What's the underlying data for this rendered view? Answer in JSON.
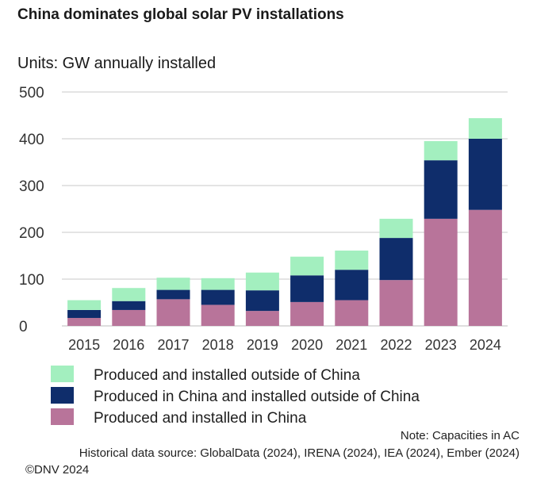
{
  "chart_data": {
    "type": "bar",
    "stacked": true,
    "title": "China dominates global solar PV installations",
    "ylabel": "Units: GW annually installed",
    "ylim": [
      0,
      500
    ],
    "yticks": [
      "0",
      "100",
      "200",
      "300",
      "400",
      "500"
    ],
    "categories": [
      "2015",
      "2016",
      "2017",
      "2018",
      "2019",
      "2020",
      "2021",
      "2022",
      "2023",
      "2024"
    ],
    "series": [
      {
        "name": "Produced and installed in China",
        "color": "#b8749a",
        "values": [
          17,
          34,
          57,
          45,
          32,
          51,
          55,
          98,
          229,
          248
        ]
      },
      {
        "name": "Produced in China and installed outside of China",
        "color": "#0f2d6b",
        "values": [
          17,
          19,
          20,
          32,
          44,
          57,
          65,
          90,
          125,
          152
        ]
      },
      {
        "name": "Produced and installed outside of China",
        "color": "#a3efbf",
        "values": [
          21,
          28,
          26,
          25,
          38,
          40,
          41,
          41,
          41,
          44
        ]
      }
    ],
    "legend_order": [
      2,
      1,
      0
    ],
    "legend_position": "bottom-left",
    "grid": true
  },
  "notes": {
    "capacities": "Note: Capacities in AC",
    "source": "Historical data source: GlobalData (2024), IRENA (2024), IEA (2024), Ember (2024)",
    "copyright": "©DNV 2024"
  }
}
